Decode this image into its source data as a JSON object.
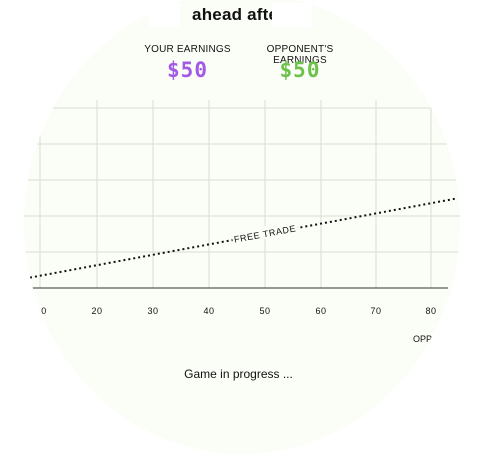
{
  "header": {
    "title": "ahead after"
  },
  "scores": {
    "you": {
      "label": "YOUR EARNINGS",
      "value": "$50",
      "color": "#a259e6"
    },
    "opponent": {
      "label": "OPPONENT'S EARNINGS",
      "value": "$50",
      "color": "#6cc24a"
    }
  },
  "chart_data": {
    "type": "line",
    "x_ticks": [
      "0",
      "20",
      "30",
      "40",
      "50",
      "60",
      "70",
      "80"
    ],
    "xlabel": "OPP",
    "series": [
      {
        "name": "FREE TRADE",
        "x_start": 0,
        "x_end": 83,
        "y_start_frac": 0.05,
        "y_end_frac": 0.48
      }
    ],
    "grid": true
  },
  "status": {
    "text": "Game in progress ..."
  }
}
